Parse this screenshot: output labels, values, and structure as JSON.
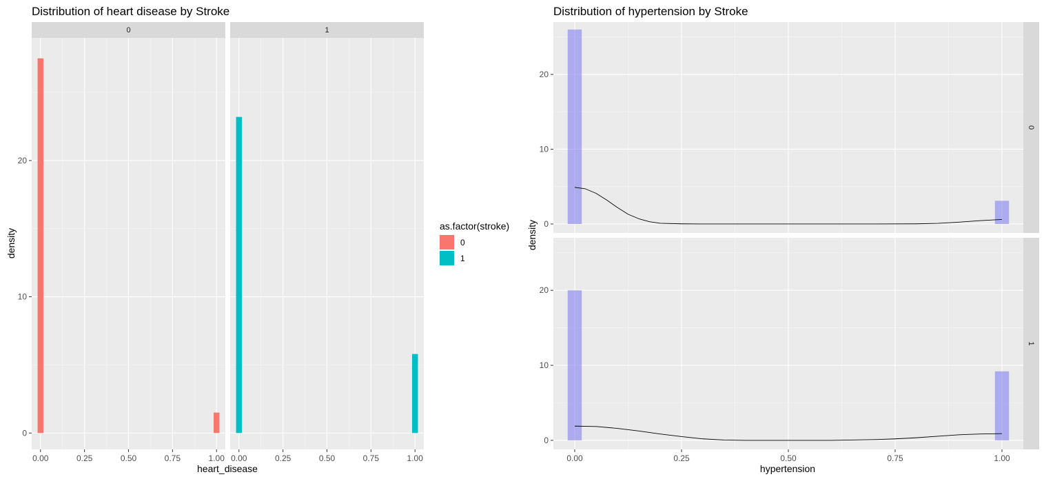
{
  "chart_data": [
    {
      "type": "bar",
      "title": "Distribution of heart disease by Stroke",
      "xlabel": "heart_disease",
      "ylabel": "density",
      "xlim": [
        -0.05,
        1.05
      ],
      "ylim": [
        -1.2,
        29
      ],
      "x_ticks": [
        0,
        0.25,
        0.5,
        0.75,
        1
      ],
      "x_tick_labels": [
        "0.00",
        "0.25",
        "0.50",
        "0.75",
        "1.00"
      ],
      "y_ticks": [
        0,
        10,
        20
      ],
      "y_tick_labels": [
        "0",
        "10",
        "20"
      ],
      "facet_variable": "stroke",
      "facet_layout": "columns",
      "grid": true,
      "legend": {
        "title": "as.factor(stroke)",
        "position": "right",
        "entries": [
          {
            "label": "0",
            "color": "#F8766D"
          },
          {
            "label": "1",
            "color": "#00BFC4"
          }
        ]
      },
      "bar_width": 0.033,
      "facets": [
        {
          "label": "0",
          "color": "#F8766D",
          "x": [
            0,
            1
          ],
          "values": [
            27.5,
            1.5
          ]
        },
        {
          "label": "1",
          "color": "#00BFC4",
          "x": [
            0,
            1
          ],
          "values": [
            23.2,
            5.8
          ]
        }
      ]
    },
    {
      "type": "bar",
      "title": "Distribution of hypertension by Stroke",
      "xlabel": "hypertension",
      "ylabel": "density",
      "xlim": [
        -0.05,
        1.05
      ],
      "ylim": [
        -1.2,
        27
      ],
      "x_ticks": [
        0,
        0.25,
        0.5,
        0.75,
        1
      ],
      "x_tick_labels": [
        "0.00",
        "0.25",
        "0.50",
        "0.75",
        "1.00"
      ],
      "y_ticks": [
        0,
        10,
        20
      ],
      "y_tick_labels": [
        "0",
        "10",
        "20"
      ],
      "facet_variable": "stroke",
      "facet_layout": "rows",
      "grid": true,
      "bar_color": "#7777EE",
      "bar_opacity": 0.55,
      "line_color": "#000000",
      "bar_width": 0.033,
      "facets": [
        {
          "label": "0",
          "x": [
            0,
            1
          ],
          "values": [
            26,
            3.1
          ],
          "density_curve": {
            "x": [
              0,
              0.025,
              0.05,
              0.075,
              0.1,
              0.125,
              0.15,
              0.175,
              0.2,
              0.25,
              0.3,
              0.4,
              0.5,
              0.6,
              0.7,
              0.8,
              0.85,
              0.9,
              0.95,
              1
            ],
            "y": [
              4.9,
              4.7,
              4.1,
              3.2,
              2.2,
              1.3,
              0.7,
              0.3,
              0.1,
              0.02,
              0.0,
              0.0,
              0.0,
              0.0,
              0.0,
              0.02,
              0.08,
              0.25,
              0.45,
              0.6
            ]
          }
        },
        {
          "label": "1",
          "x": [
            0,
            1
          ],
          "values": [
            20,
            9.2
          ],
          "density_curve": {
            "x": [
              0,
              0.05,
              0.1,
              0.15,
              0.2,
              0.25,
              0.3,
              0.35,
              0.4,
              0.5,
              0.6,
              0.7,
              0.75,
              0.8,
              0.85,
              0.9,
              0.95,
              1
            ],
            "y": [
              1.9,
              1.85,
              1.6,
              1.25,
              0.85,
              0.5,
              0.2,
              0.05,
              0.0,
              0.0,
              0.0,
              0.1,
              0.2,
              0.35,
              0.55,
              0.75,
              0.85,
              0.9
            ]
          }
        }
      ]
    }
  ]
}
